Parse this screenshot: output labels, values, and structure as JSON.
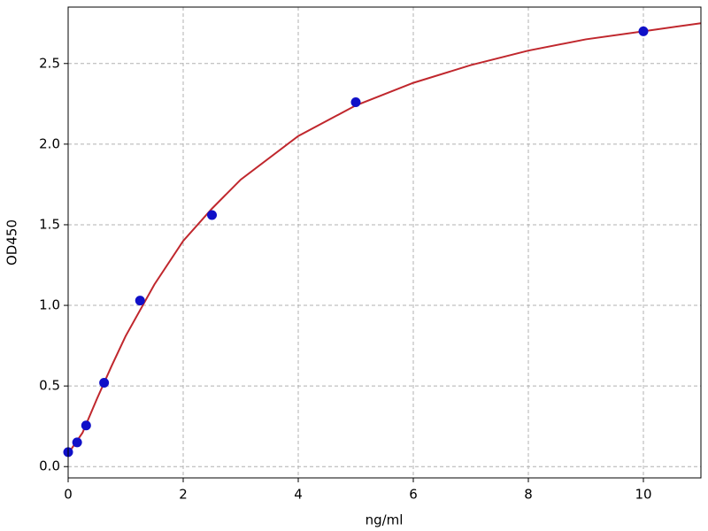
{
  "chart_data": {
    "type": "scatter",
    "xlabel": "ng/ml",
    "ylabel": "OD450",
    "xlim": [
      0,
      11
    ],
    "ylim": [
      -0.07,
      2.85
    ],
    "xticks": [
      0,
      2,
      4,
      6,
      8,
      10
    ],
    "yticks": [
      {
        "value": 0,
        "label": "0.0"
      },
      {
        "value": 0.5,
        "label": "0.5"
      },
      {
        "value": 1,
        "label": "1.0"
      },
      {
        "value": 1.5,
        "label": "1.5"
      },
      {
        "value": 2,
        "label": "2.0"
      },
      {
        "value": 2.5,
        "label": "2.5"
      }
    ],
    "grid": true,
    "series": [
      {
        "type": "line",
        "color": "#c0272d",
        "x": [
          0,
          0.25,
          0.5,
          0.75,
          1,
          1.5,
          2,
          2.5,
          3,
          4,
          5,
          6,
          7,
          8,
          9,
          10,
          11
        ],
        "values": [
          0.08,
          0.21,
          0.42,
          0.62,
          0.81,
          1.13,
          1.4,
          1.6,
          1.78,
          2.05,
          2.24,
          2.38,
          2.49,
          2.58,
          2.65,
          2.7,
          2.75
        ]
      },
      {
        "type": "scatter",
        "color": "#1010c8",
        "x": [
          0,
          0.156,
          0.3125,
          0.625,
          1.25,
          2.5,
          5,
          10
        ],
        "values": [
          0.09,
          0.15,
          0.255,
          0.52,
          1.03,
          1.56,
          2.26,
          2.7
        ]
      }
    ]
  }
}
